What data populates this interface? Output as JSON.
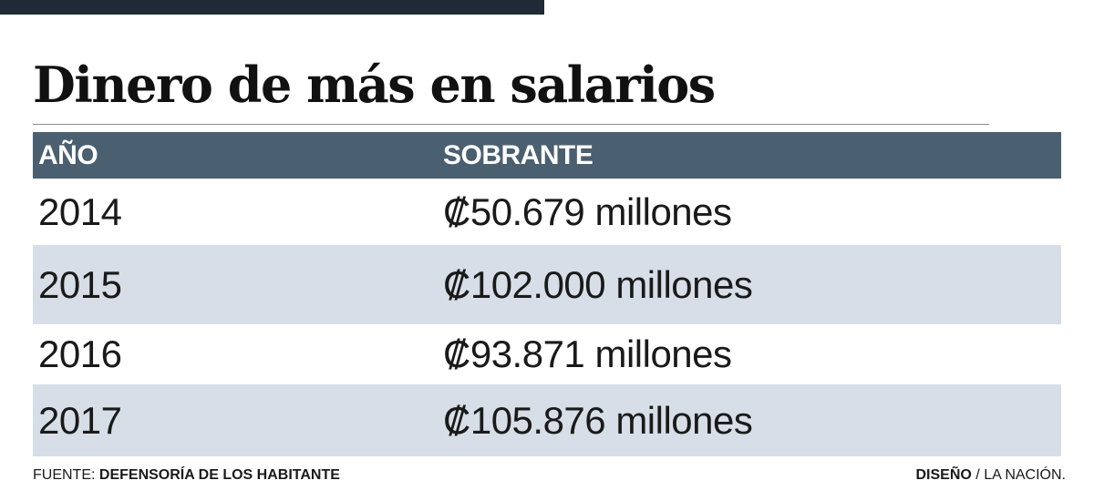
{
  "title": "Dinero de más en salarios",
  "table": {
    "headers": [
      "AÑO",
      "SOBRANTE"
    ],
    "rows": [
      [
        "2014",
        "₡50.679 millones"
      ],
      [
        "2015",
        "₡102.000 millones"
      ],
      [
        "2016",
        "₡93.871 millones"
      ],
      [
        "2017",
        "₡105.876 millones"
      ]
    ]
  },
  "footer": {
    "source_label": "FUENTE:",
    "source_value": "DEFENSORÍA DE LOS HABITANTE",
    "credit_label": "DISEÑO",
    "credit_value": "/ LA NACIÓN."
  },
  "colors": {
    "top_bar": "#1f2a36",
    "header_bg": "#4a5f70",
    "row_alt_bg": "#d7dee7"
  },
  "chart_data": {
    "type": "table",
    "title": "Dinero de más en salarios",
    "columns": [
      "AÑO",
      "SOBRANTE"
    ],
    "x": [
      2014,
      2015,
      2016,
      2017
    ],
    "values": [
      50679,
      102000,
      93871,
      105876
    ],
    "unit": "₡ millones"
  }
}
